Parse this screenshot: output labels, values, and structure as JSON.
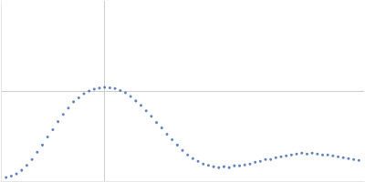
{
  "chart_data": {
    "type": "scatter",
    "color": "#3a62b0",
    "marker": "circle",
    "grid": true,
    "tick_labels": false,
    "xlim": [
      0,
      0.35
    ],
    "xticks": [
      0.1
    ],
    "ylim": [
      0,
      2
    ],
    "yticks": [
      1
    ],
    "x": [
      0.005,
      0.01,
      0.015,
      0.02,
      0.025,
      0.03,
      0.035,
      0.04,
      0.045,
      0.05,
      0.055,
      0.06,
      0.065,
      0.07,
      0.075,
      0.08,
      0.085,
      0.09,
      0.095,
      0.1,
      0.105,
      0.11,
      0.115,
      0.12,
      0.125,
      0.13,
      0.135,
      0.14,
      0.145,
      0.15,
      0.155,
      0.16,
      0.165,
      0.17,
      0.175,
      0.18,
      0.185,
      0.19,
      0.195,
      0.2,
      0.205,
      0.21,
      0.215,
      0.22,
      0.225,
      0.23,
      0.235,
      0.24,
      0.245,
      0.25,
      0.255,
      0.26,
      0.265,
      0.27,
      0.275,
      0.28,
      0.285,
      0.29,
      0.295,
      0.3,
      0.305,
      0.31,
      0.315,
      0.32,
      0.325,
      0.33,
      0.335,
      0.34,
      0.345
    ],
    "values": [
      0.04,
      0.055,
      0.08,
      0.12,
      0.175,
      0.24,
      0.32,
      0.4,
      0.49,
      0.57,
      0.66,
      0.74,
      0.81,
      0.88,
      0.925,
      0.97,
      1.0,
      1.02,
      1.032,
      1.04,
      1.035,
      1.028,
      1.005,
      0.98,
      0.94,
      0.89,
      0.84,
      0.78,
      0.72,
      0.65,
      0.59,
      0.52,
      0.46,
      0.4,
      0.34,
      0.29,
      0.25,
      0.22,
      0.19,
      0.175,
      0.16,
      0.15,
      0.16,
      0.15,
      0.17,
      0.17,
      0.18,
      0.19,
      0.21,
      0.22,
      0.24,
      0.24,
      0.26,
      0.27,
      0.28,
      0.29,
      0.3,
      0.31,
      0.3,
      0.31,
      0.3,
      0.29,
      0.29,
      0.28,
      0.27,
      0.26,
      0.25,
      0.24,
      0.23
    ]
  }
}
